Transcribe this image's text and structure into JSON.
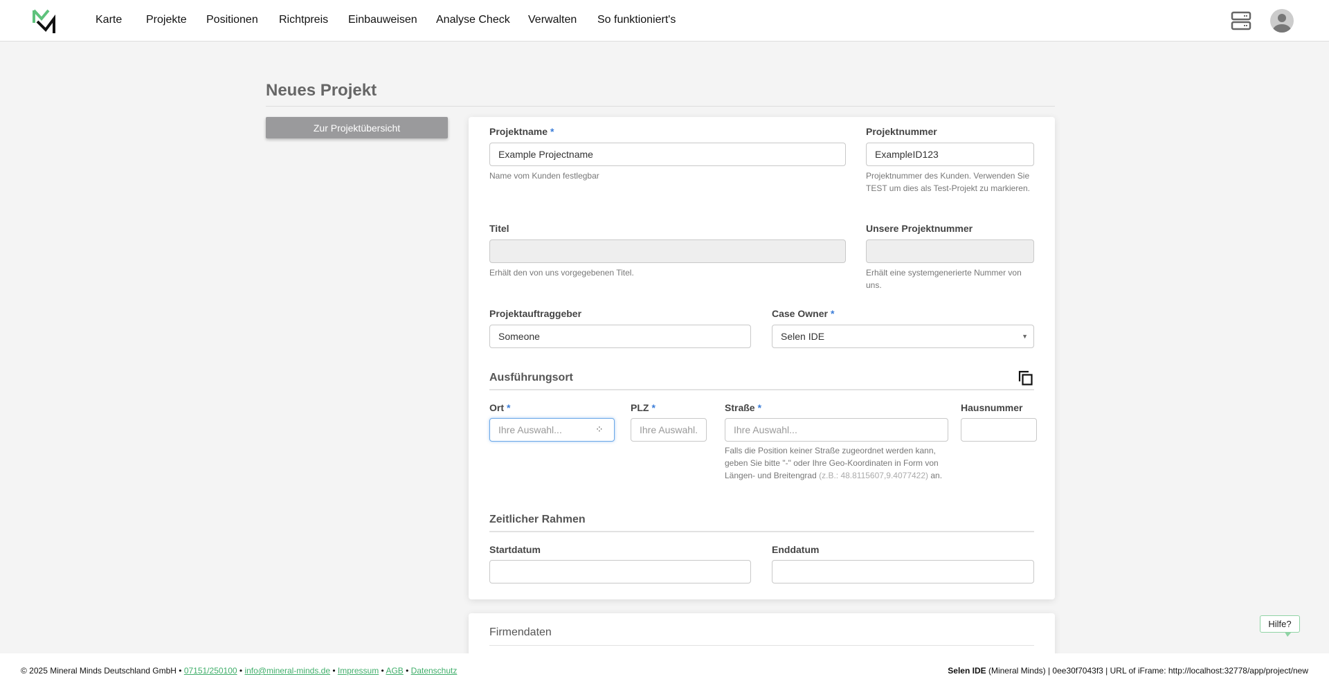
{
  "header": {
    "nav": [
      "Karte",
      "Projekte",
      "Positionen",
      "Richtpreis",
      "Einbauweisen",
      "Analyse Check",
      "Verwalten",
      "So funktioniert's"
    ],
    "brand_color": "#5ec27c"
  },
  "page": {
    "title": "Neues Projekt",
    "back_button": "Zur Projektübersicht"
  },
  "form": {
    "projektname": {
      "label": "Projektname",
      "value": "Example Projectname",
      "hint": "Name vom Kunden festlegbar"
    },
    "projektnummer": {
      "label": "Projektnummer",
      "value": "ExampleID123",
      "hint": "Projektnummer des Kunden. Verwenden Sie TEST um dies als Test-Projekt zu markieren."
    },
    "titel": {
      "label": "Titel",
      "value": "",
      "hint": "Erhält den von uns vorgegebenen Titel."
    },
    "unsere_nummer": {
      "label": "Unsere Projektnummer",
      "value": "",
      "hint": "Erhält eine systemgenerierte Nummer von uns."
    },
    "auftraggeber": {
      "label": "Projektauftraggeber",
      "value": "Someone"
    },
    "case_owner": {
      "label": "Case Owner",
      "value": "Selen IDE"
    },
    "ausfuehrungsort": "Ausführungsort",
    "ort": {
      "label": "Ort",
      "placeholder": "Ihre Auswahl..."
    },
    "plz": {
      "label": "PLZ",
      "placeholder": "Ihre Auswahl..."
    },
    "strasse": {
      "label": "Straße",
      "placeholder": "Ihre Auswahl...",
      "hint": "Falls die Position keiner Straße zugeordnet werden kann, geben Sie bitte \"-\" oder Ihre Geo-Koordinaten in Form von Längen- und Breitengrad ",
      "hint_example": "(z.B.: 48.8115607,9.4077422)",
      "hint_end": " an."
    },
    "hausnummer": {
      "label": "Hausnummer",
      "value": ""
    },
    "zeitlicher_rahmen": "Zeitlicher Rahmen",
    "startdatum": {
      "label": "Startdatum",
      "value": ""
    },
    "enddatum": {
      "label": "Enddatum",
      "value": ""
    },
    "required_mark": "*"
  },
  "firmendaten": "Firmendaten",
  "help": "Hilfe?",
  "footer": {
    "copyright": "© 2025 Mineral Minds Deutschland GmbH • ",
    "phone": "07151/250100",
    "email": "info@mineral-minds.de",
    "impressum": "Impressum",
    "agb": "AGB",
    "datenschutz": "Datenschutz",
    "sep": " • ",
    "user": "Selen IDE",
    "right": " (Mineral Minds) | 0ee30f7043f3 | URL of iFrame: http://localhost:32778/app/project/new"
  }
}
